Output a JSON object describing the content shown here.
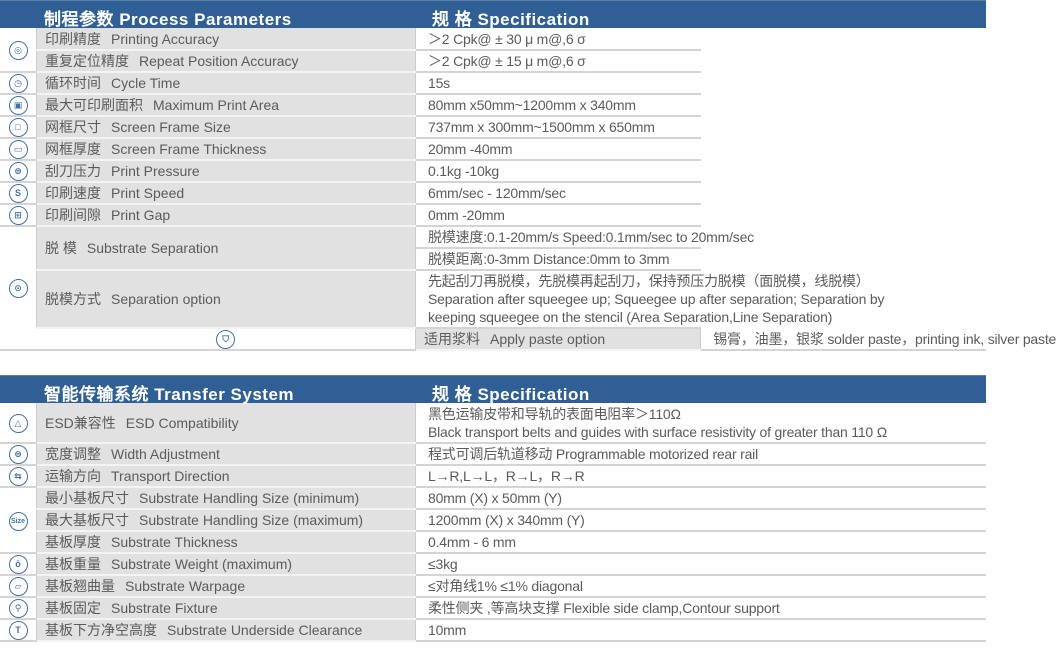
{
  "process": {
    "header_left": "制程参数  Process Parameters",
    "header_right": "规 格  Specification",
    "rows": [
      {
        "icon": "target-icon",
        "glyph": "◎",
        "label_cn": "印刷精度",
        "label_en": "Printing Accuracy",
        "specs": [
          [
            "＞2 Cpk@ ± 30 μ m@,6 σ"
          ]
        ]
      },
      {
        "label_cn": "重复定位精度",
        "label_en": "Repeat Position Accuracy",
        "specs": [
          [
            "＞2 Cpk@ ± 15 μ m@,6 σ"
          ]
        ]
      },
      {
        "icon": "clock-icon",
        "glyph": "◷",
        "label_cn": "循环时间",
        "label_en": "Cycle Time",
        "specs": [
          [
            "15s"
          ]
        ]
      },
      {
        "icon": "print-area-icon",
        "glyph": "▣",
        "label_cn": "最大可印刷面积",
        "label_en": "Maximum Print Area",
        "specs": [
          [
            "80mm x50mm~1200mm x 340mm"
          ]
        ]
      },
      {
        "icon": "screen-frame-icon",
        "glyph": "□",
        "label_cn": "网框尺寸",
        "label_en": "Screen Frame Size",
        "specs": [
          [
            "737mm x 300mm~1500mm x 650mm"
          ]
        ]
      },
      {
        "icon": "frame-thickness-icon",
        "glyph": "▭",
        "label_cn": "网框厚度",
        "label_en": "Screen Frame Thickness",
        "specs": [
          [
            "20mm -40mm"
          ]
        ]
      },
      {
        "icon": "pressure-icon",
        "glyph": "⊜",
        "label_cn": "刮刀压力",
        "label_en": "Print Pressure",
        "specs": [
          [
            "0.1kg -10kg"
          ]
        ]
      },
      {
        "icon": "speed-icon",
        "glyph": "S",
        "label_cn": "印刷速度",
        "label_en": "Print Speed",
        "specs": [
          [
            "6mm/sec - 120mm/sec"
          ]
        ]
      },
      {
        "icon": "gap-icon",
        "glyph": "⊞",
        "label_cn": "印刷间隙",
        "label_en": "Print Gap",
        "specs": [
          [
            "0mm -20mm"
          ]
        ]
      },
      {
        "icon": "separation-icon",
        "glyph": "⊙",
        "label_cn": "脱   模",
        "label_en": "Substrate Separation",
        "specs": [
          [
            "脱模速度:0.1-20mm/s   Speed:0.1mm/sec to 20mm/sec"
          ],
          [
            "脱模距离:0-3mm   Distance:0mm to 3mm"
          ]
        ]
      },
      {
        "label_cn": "脱模方式",
        "label_en": "Separation option",
        "specs": [
          [
            "先起刮刀再脱模，先脱模再起刮刀，保持预压力脱模（面脱模，线脱模）",
            "Separation after squeegee up; Squeegee up after separation; Separation by",
            "keeping squeegee on the stencil (Area Separation,Line Separation)"
          ]
        ]
      },
      {
        "icon": "paste-cup-icon",
        "glyph": "⛉",
        "label_cn": "适用浆料",
        "label_en": "Apply paste option",
        "specs": [
          [
            "锡膏，油墨，银浆   solder paste，printing ink, silver paste"
          ]
        ]
      }
    ]
  },
  "transfer": {
    "header_left": "智能传输系统  Transfer System",
    "header_right": "规 格  Specification",
    "rows": [
      {
        "icon": "esd-triangle-icon",
        "glyph": "△",
        "label_cn": "ESD兼容性",
        "label_en": "ESD Compatibility",
        "specs": [
          [
            "黑色运输皮带和导轨的表面电阻率＞110Ω",
            "Black transport belts and guides with surface resistivity of greater than 110 Ω"
          ]
        ]
      },
      {
        "icon": "width-adjust-icon",
        "glyph": "⊜",
        "label_cn": "宽度调整",
        "label_en": "Width Adjustment",
        "specs": [
          [
            "程式可调后轨道移动   Programmable motorized rear rail"
          ]
        ]
      },
      {
        "icon": "transport-direction-icon",
        "glyph": "⇆",
        "label_cn": "运输方向",
        "label_en": "Transport Direction",
        "specs": [
          [
            "L→R,L→L，R→L，R→R"
          ]
        ]
      },
      {
        "icon": "size-icon",
        "glyph": "Size",
        "label_cn": "最小基板尺寸",
        "label_en": "Substrate Handling Size (minimum)",
        "specs": [
          [
            "80mm (X) x 50mm (Y)"
          ]
        ]
      },
      {
        "label_cn": "最大基板尺寸",
        "label_en": "Substrate Handling Size (maximum)",
        "specs": [
          [
            "1200mm (X) x 340mm (Y)"
          ]
        ]
      },
      {
        "label_cn": "基板厚度",
        "label_en": "Substrate Thickness",
        "specs": [
          [
            "0.4mm - 6 mm"
          ]
        ]
      },
      {
        "icon": "weight-icon",
        "glyph": "ō",
        "label_cn": "基板重量",
        "label_en": "Substrate Weight (maximum)",
        "specs": [
          [
            "≤3kg"
          ]
        ]
      },
      {
        "icon": "warpage-icon",
        "glyph": "▱",
        "label_cn": "基板翘曲量",
        "label_en": "Substrate Warpage",
        "specs": [
          [
            "≤对角线1%   ≤1%  diagonal"
          ]
        ]
      },
      {
        "icon": "fixture-icon",
        "glyph": "⚲",
        "label_cn": "基板固定",
        "label_en": "Substrate Fixture",
        "specs": [
          [
            "柔性侧夹 ,等高块支撑   Flexible side clamp,Contour support"
          ]
        ]
      },
      {
        "icon": "clearance-icon",
        "glyph": "T",
        "label_cn": "基板下方净空高度",
        "label_en": "Substrate Underside Clearance",
        "specs": [
          [
            "10mm"
          ]
        ]
      }
    ]
  },
  "colors": {
    "header_bg": "#2f5f95",
    "label_bg": "#e1e1e1",
    "icon": "#3f6fa8"
  }
}
